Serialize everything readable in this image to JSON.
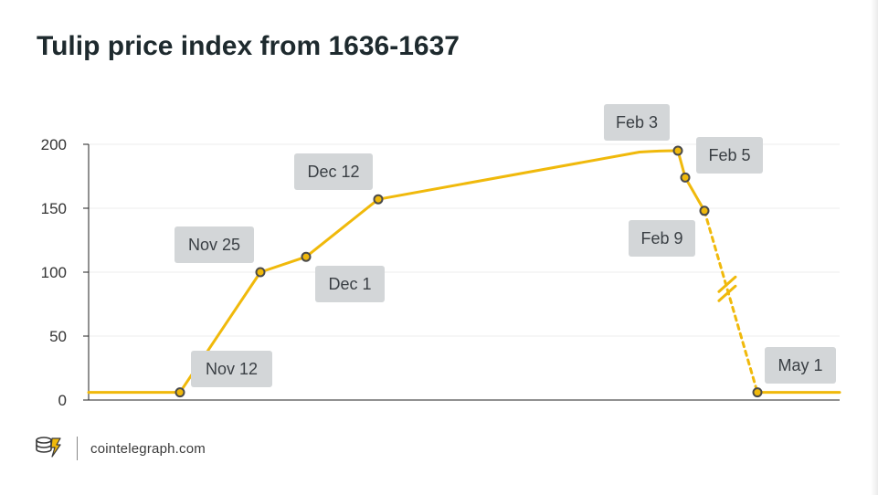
{
  "title": "Tulip price index from 1636-1637",
  "brand": {
    "name": "cointelegraph.com",
    "icon": "cointelegraph-logo-icon"
  },
  "colors": {
    "line": "#f0b90b",
    "marker_fill": "#f0b90b",
    "marker_stroke": "#4a4a4a",
    "label_box": "#d3d6d8",
    "label_text": "#3a3f44",
    "grid": "#ececec",
    "axis": "#222222"
  },
  "chart_data": {
    "type": "line",
    "title": "Tulip price index from 1636-1637",
    "xlabel": "",
    "ylabel": "",
    "ylim": [
      0,
      200
    ],
    "yticks": [
      0,
      50,
      100,
      150,
      200
    ],
    "grid": true,
    "x_axis": "dates, not evenly spaced (axis break between Feb 9 and May 1)",
    "series": [
      {
        "values": [
          {
            "date": "Nov 12",
            "y": 6
          },
          {
            "date": "Nov 25",
            "y": 100
          },
          {
            "date": "Dec 1",
            "y": 112
          },
          {
            "date": "Dec 12",
            "y": 157
          },
          {
            "date": "Feb 3",
            "y": 195
          },
          {
            "date": "Feb 5",
            "y": 174
          },
          {
            "date": "Feb 9",
            "y": 148
          },
          {
            "date": "May 1",
            "y": 6
          }
        ]
      }
    ],
    "annotations": [
      "Nov 12",
      "Nov 25",
      "Dec 1",
      "Dec 12",
      "Feb 3",
      "Feb 5",
      "Feb 9",
      "May 1"
    ]
  }
}
